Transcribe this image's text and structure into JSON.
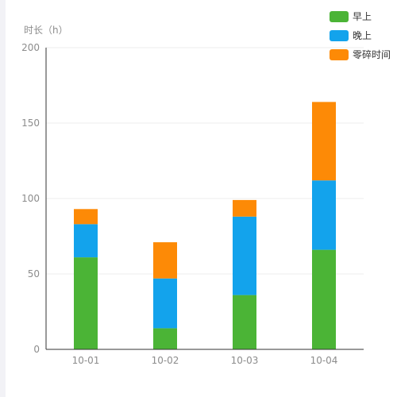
{
  "chart_data": {
    "type": "bar",
    "stacked": true,
    "title": "",
    "xlabel": "",
    "ylabel": "时长（h）",
    "ylim": [
      0,
      200
    ],
    "yticks": [
      0,
      50,
      100,
      150,
      200
    ],
    "grid": true,
    "legend_position": "top-right",
    "categories": [
      "10-01",
      "10-02",
      "10-03",
      "10-04"
    ],
    "series": [
      {
        "name": "早上",
        "color": "#4bb436",
        "values": [
          61,
          14,
          36,
          66
        ]
      },
      {
        "name": "晚上",
        "color": "#13a3ec",
        "values": [
          22,
          33,
          52,
          46
        ]
      },
      {
        "name": "零碎时间",
        "color": "#fd8a06",
        "values": [
          10,
          24,
          11,
          52
        ]
      }
    ]
  }
}
